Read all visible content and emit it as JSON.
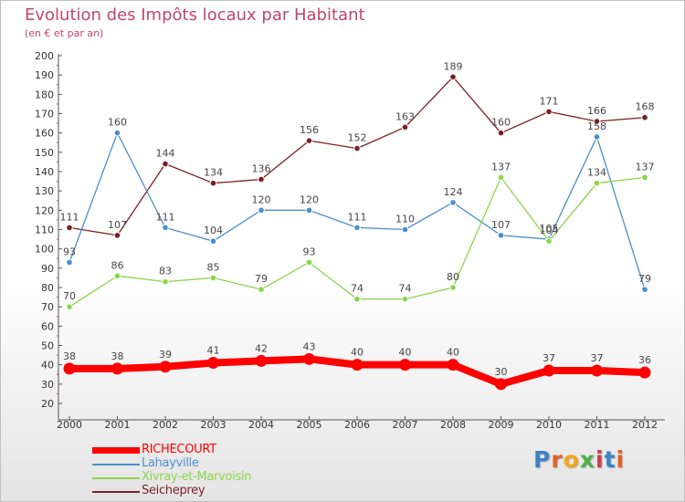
{
  "chart_data": {
    "type": "line",
    "title": "Evolution des Impôts locaux par Habitant",
    "subtitle": "(en € et par an)",
    "xlabel": "",
    "ylabel": "",
    "ylim": [
      20,
      200
    ],
    "yticks": [
      20,
      30,
      40,
      50,
      60,
      70,
      80,
      90,
      100,
      110,
      120,
      130,
      140,
      150,
      160,
      170,
      180,
      190,
      200
    ],
    "grid": false,
    "legend_position": "bottom-left",
    "categories": [
      "2000",
      "2001",
      "2002",
      "2003",
      "2004",
      "2005",
      "2006",
      "2007",
      "2008",
      "2009",
      "2010",
      "2011",
      "2012"
    ],
    "series": [
      {
        "name": "Seicheprey",
        "color": "#7b1f24",
        "values": [
          111,
          107,
          144,
          134,
          136,
          156,
          152,
          163,
          189,
          160,
          171,
          166,
          168
        ]
      },
      {
        "name": "Lahayville",
        "color": "#4a8fcc",
        "values": [
          93,
          160,
          111,
          104,
          120,
          120,
          111,
          110,
          124,
          107,
          105,
          158,
          79
        ]
      },
      {
        "name": "Xivray-et-Marvoisin",
        "color": "#8cd44a",
        "values": [
          70,
          86,
          83,
          85,
          79,
          93,
          74,
          74,
          80,
          137,
          104,
          134,
          137
        ]
      },
      {
        "name": "RICHECOURT",
        "color": "#ff0000",
        "values": [
          38,
          38,
          39,
          41,
          42,
          43,
          40,
          40,
          40,
          30,
          37,
          37,
          36
        ]
      }
    ]
  },
  "legend": [
    {
      "label": "RICHECOURT",
      "color": "#ff0000"
    },
    {
      "label": "Lahayville",
      "color": "#4a8fcc"
    },
    {
      "label": "Xivray-et-Marvoisin",
      "color": "#8cd44a"
    },
    {
      "label": "Seicheprey",
      "color": "#7b1f24"
    }
  ],
  "logo": {
    "text": "Proxiti"
  }
}
